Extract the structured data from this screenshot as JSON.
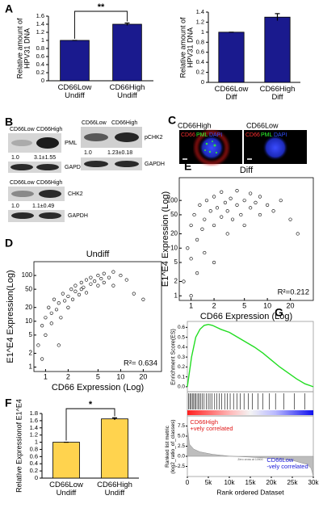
{
  "panel_labels": [
    "A",
    "B",
    "C",
    "D",
    "E",
    "F",
    "G"
  ],
  "chart_data": [
    {
      "type": "bar",
      "ylabel": "Relative amount of\nHPV31 DNA",
      "categories": [
        "CD66Low\nUndiff",
        "CD66High\nUndiff"
      ],
      "values": [
        1,
        1.4
      ],
      "errors": [
        0,
        0.03
      ],
      "color": "#1a1a8e",
      "ylim": [
        0,
        1.6
      ],
      "yticks": [
        0,
        0.2,
        0.4,
        0.6,
        0.8,
        1,
        1.2,
        1.4,
        1.6
      ],
      "annotation": "**"
    },
    {
      "type": "bar",
      "ylabel": "Relative amount of\nHPV31 DNA",
      "categories": [
        "CD66Low\nDiff",
        "CD66High\nDiff"
      ],
      "values": [
        1,
        1.3
      ],
      "errors": [
        0,
        0.07
      ],
      "color": "#1a1a8e",
      "ylim": [
        0,
        1.4
      ],
      "yticks": [
        0,
        0.2,
        0.4,
        0.6,
        0.8,
        1,
        1.2,
        1.4
      ]
    },
    {
      "type": "scatter",
      "title": "Undiff",
      "xlabel": "CD66 Expression (Log)",
      "ylabel": "E1^E4 Expression(Log)",
      "annotation": "R²= 0.634",
      "xscale": "log",
      "yscale": "log",
      "x": [
        0.8,
        0.9,
        1,
        1,
        1.1,
        1.2,
        1.2,
        1.3,
        1.4,
        1.5,
        1.6,
        1.7,
        1.8,
        2,
        2,
        2.2,
        2.3,
        2.5,
        2.5,
        2.8,
        3,
        3,
        3.2,
        3.5,
        3.5,
        4,
        4,
        4.5,
        5,
        5,
        5.5,
        6,
        6,
        7,
        8,
        8,
        10,
        12,
        15,
        20,
        1.5,
        0.9
      ],
      "values": [
        3,
        8,
        12,
        5,
        20,
        15,
        9,
        30,
        18,
        25,
        12,
        40,
        28,
        35,
        20,
        50,
        30,
        45,
        60,
        38,
        70,
        50,
        55,
        80,
        42,
        65,
        90,
        75,
        100,
        60,
        85,
        70,
        110,
        90,
        120,
        60,
        100,
        80,
        40,
        30,
        3,
        1.5
      ],
      "xlim": [
        0.7,
        35
      ],
      "ylim": [
        0.8,
        200
      ],
      "xticks": [
        1,
        2,
        5,
        10,
        20
      ],
      "yticks": [
        1,
        2,
        5,
        10,
        20,
        50,
        100
      ]
    },
    {
      "type": "scatter",
      "title": "Diff",
      "xlabel": "CD66 Expression (Log)",
      "ylabel": "E1^E4 Expression (Log)",
      "annotation": "R²=0.212",
      "xscale": "log",
      "yscale": "log",
      "x": [
        0.8,
        0.9,
        1,
        1,
        1.1,
        1.2,
        1.3,
        1.4,
        1.5,
        1.5,
        1.6,
        1.8,
        2,
        2,
        2.2,
        2.5,
        2.5,
        2.8,
        3,
        3,
        3.3,
        3.5,
        4,
        4,
        4.5,
        5,
        5,
        6,
        6,
        7,
        8,
        8,
        10,
        12,
        15,
        20,
        25,
        1.2,
        2,
        1
      ],
      "values": [
        2,
        10,
        30,
        6,
        50,
        15,
        80,
        25,
        40,
        8,
        100,
        60,
        30,
        120,
        70,
        45,
        150,
        90,
        20,
        60,
        110,
        40,
        80,
        160,
        50,
        100,
        30,
        70,
        140,
        90,
        50,
        120,
        80,
        60,
        100,
        40,
        20,
        3,
        5,
        1
      ],
      "xlim": [
        0.7,
        40
      ],
      "ylim": [
        0.8,
        300
      ],
      "xticks": [
        1,
        2,
        5,
        10,
        20
      ],
      "yticks": [
        1,
        2,
        5,
        10,
        20,
        50,
        100
      ]
    },
    {
      "type": "bar",
      "ylabel": "Relative Expressionof E1^E4",
      "categories": [
        "CD66Low\nUndiff",
        "CD66High\nUndiff"
      ],
      "values": [
        1,
        1.65
      ],
      "errors": [
        0,
        0.03
      ],
      "color": "#ffd34e",
      "ylim": [
        0,
        1.8
      ],
      "yticks": [
        0,
        0.2,
        0.4,
        0.6,
        0.8,
        1,
        1.2,
        1.4,
        1.6,
        1.8
      ],
      "annotation": "*"
    },
    {
      "type": "line",
      "ylabel": "Enrichment Score(ES)",
      "xlabel": "Rank ordered Dataset",
      "color": "#22dd22",
      "x": [
        0,
        1000,
        2000,
        3000,
        4000,
        5000,
        6000,
        7000,
        8000,
        10000,
        12000,
        14000,
        16000,
        18000,
        20000,
        22000,
        24000,
        26000,
        28000,
        30000
      ],
      "values": [
        0,
        0.3,
        0.5,
        0.58,
        0.62,
        0.63,
        0.62,
        0.6,
        0.58,
        0.55,
        0.5,
        0.45,
        0.4,
        0.34,
        0.27,
        0.2,
        0.14,
        0.08,
        0.03,
        0
      ],
      "xlim": [
        0,
        30000
      ],
      "xticks": [
        0,
        {
          "value": 5000,
          "label": "5k"
        },
        {
          "value": 10000,
          "label": "10k"
        },
        {
          "value": 15000,
          "label": "15k"
        },
        {
          "value": 20000,
          "label": "20k"
        },
        {
          "value": 25000,
          "label": "25k"
        },
        {
          "value": 30000,
          "label": "30k"
        }
      ],
      "ylim": [
        -0.05,
        0.66
      ],
      "yticks": [
        {
          "value": 0,
          "label": "0.0"
        },
        0.1,
        0.2,
        0.3,
        0.4,
        0.5,
        0.6
      ],
      "hits": [
        300,
        600,
        900,
        1200,
        1500,
        1800,
        2100,
        2500,
        2800,
        3200,
        3600,
        4000,
        4500,
        5000,
        5400,
        5900,
        6500,
        7000,
        7600,
        8200,
        8900,
        9500,
        10200,
        11000,
        11800,
        12600,
        13500,
        14500,
        15500,
        16800,
        18000,
        19500,
        21000,
        23000,
        25500,
        28000
      ],
      "metric": {
        "ylabel": "Ranked list metric\n(log2_ratio_of_classes)",
        "x": [
          0,
          500,
          1500,
          3000,
          6000,
          10000,
          10900,
          15000,
          20000,
          25000,
          28500,
          29500,
          30000
        ],
        "values": [
          7.5,
          3,
          1.8,
          1.1,
          0.5,
          0.05,
          0,
          -0.2,
          -0.5,
          -1,
          -2,
          -3,
          -5
        ],
        "ylim": [
          -5,
          10
        ],
        "yticks": [
          7.5,
          {
            "value": 5,
            "label": "5.0"
          },
          2.5,
          {
            "value": 0,
            "label": "0.0"
          },
          -2.5
        ]
      },
      "annotations": [
        "CD66High\n+vely correlated",
        "CD66Low\n-vely correlated",
        "Zero cross at 10900"
      ]
    }
  ],
  "blots": [
    {
      "lanes": [
        "CD66Low",
        "CD66High"
      ],
      "rows": [
        {
          "label": "PML",
          "ratios": [
            "1.0",
            "3.1±1.55"
          ]
        },
        {
          "label": "GAPDH"
        }
      ]
    },
    {
      "lanes": [
        "CD66Low",
        "CD66High"
      ],
      "rows": [
        {
          "label": "pCHK2",
          "ratios": [
            "1.0",
            "1.23±0.18"
          ]
        },
        {
          "label": "GAPDH"
        }
      ]
    },
    {
      "lanes": [
        "CD66Low",
        "CD66High"
      ],
      "rows": [
        {
          "label": "CHK2",
          "ratios": [
            "1.0",
            "1.1±0.49"
          ]
        },
        {
          "label": "GAPDH"
        }
      ]
    }
  ],
  "micrographs": [
    {
      "title": "CD66High",
      "channels": [
        "CD66",
        "PML",
        "DAPI"
      ]
    },
    {
      "title": "CD66Low",
      "channels": [
        "CD66",
        "PML",
        "DAPI"
      ]
    }
  ]
}
